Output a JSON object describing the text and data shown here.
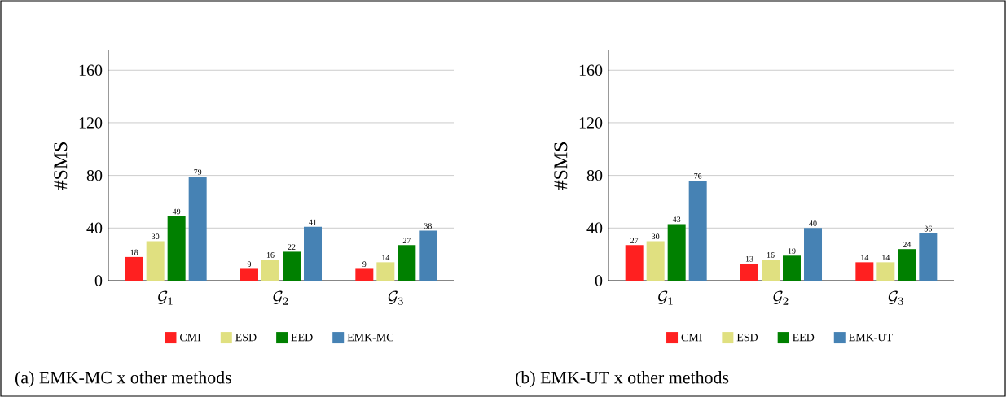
{
  "chart_data": [
    {
      "type": "bar",
      "categories": [
        "\\mathcal{G}_1",
        "\\mathcal{G}_2",
        "\\mathcal{G}_3"
      ],
      "ylabel": "#SMS",
      "ylim": [
        0,
        175
      ],
      "yticks": [
        0,
        40,
        80,
        120,
        160
      ],
      "grid": "y",
      "legend": "bottom",
      "data_labels": true,
      "series": [
        {
          "name": "CMI",
          "color": "#ff2020",
          "values": [
            18,
            9,
            9
          ]
        },
        {
          "name": "ESD",
          "color": "#e0e080",
          "values": [
            30,
            16,
            14
          ]
        },
        {
          "name": "EED",
          "color": "#008000",
          "values": [
            49,
            22,
            27
          ]
        },
        {
          "name": "EMK-MC",
          "color": "#4682b4",
          "values": [
            79,
            41,
            38
          ]
        }
      ],
      "annotations": [
        "(a) EMK-MC x other methods"
      ]
    },
    {
      "type": "bar",
      "categories": [
        "\\mathcal{G}_1",
        "\\mathcal{G}_2",
        "\\mathcal{G}_3"
      ],
      "ylabel": "#SMS",
      "ylim": [
        0,
        175
      ],
      "yticks": [
        0,
        40,
        80,
        120,
        160
      ],
      "grid": "y",
      "legend": "bottom",
      "data_labels": true,
      "series": [
        {
          "name": "CMI",
          "color": "#ff2020",
          "values": [
            27,
            13,
            14
          ]
        },
        {
          "name": "ESD",
          "color": "#e0e080",
          "values": [
            30,
            16,
            14
          ]
        },
        {
          "name": "EED",
          "color": "#008000",
          "values": [
            43,
            19,
            24
          ]
        },
        {
          "name": "EMK-UT",
          "color": "#4682b4",
          "values": [
            76,
            40,
            36
          ]
        }
      ],
      "annotations": [
        "(b) EMK-UT x other methods"
      ]
    }
  ]
}
